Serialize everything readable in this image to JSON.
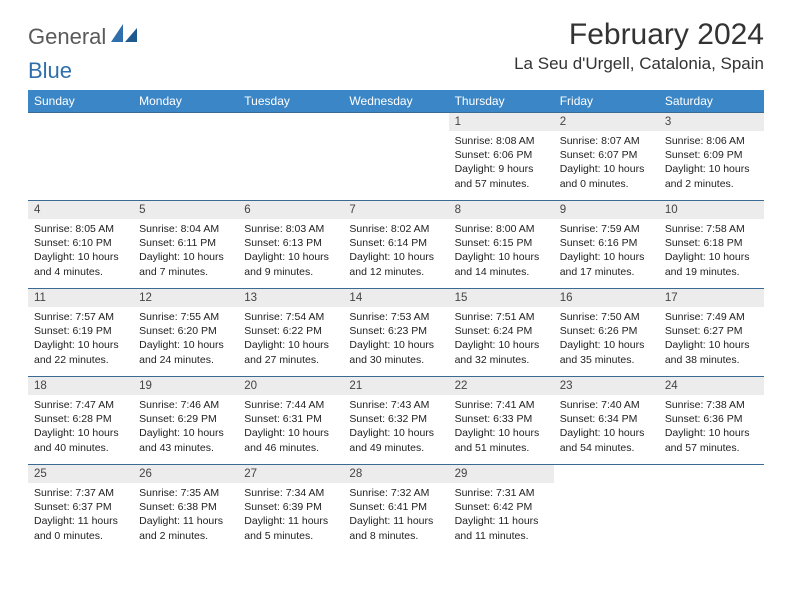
{
  "logo": {
    "text1": "General",
    "text2": "Blue"
  },
  "title": "February 2024",
  "location": "La Seu d'Urgell, Catalonia, Spain",
  "colors": {
    "header_bg": "#3b86c6",
    "header_text": "#ffffff",
    "border": "#3b6a94",
    "daynum_bg": "#ececec",
    "logo_gray": "#5a5a5a",
    "logo_blue": "#2f6fab"
  },
  "day_headers": [
    "Sunday",
    "Monday",
    "Tuesday",
    "Wednesday",
    "Thursday",
    "Friday",
    "Saturday"
  ],
  "weeks": [
    [
      null,
      null,
      null,
      null,
      {
        "n": "1",
        "sr": "8:08 AM",
        "ss": "6:06 PM",
        "dl": "9 hours and 57 minutes."
      },
      {
        "n": "2",
        "sr": "8:07 AM",
        "ss": "6:07 PM",
        "dl": "10 hours and 0 minutes."
      },
      {
        "n": "3",
        "sr": "8:06 AM",
        "ss": "6:09 PM",
        "dl": "10 hours and 2 minutes."
      }
    ],
    [
      {
        "n": "4",
        "sr": "8:05 AM",
        "ss": "6:10 PM",
        "dl": "10 hours and 4 minutes."
      },
      {
        "n": "5",
        "sr": "8:04 AM",
        "ss": "6:11 PM",
        "dl": "10 hours and 7 minutes."
      },
      {
        "n": "6",
        "sr": "8:03 AM",
        "ss": "6:13 PM",
        "dl": "10 hours and 9 minutes."
      },
      {
        "n": "7",
        "sr": "8:02 AM",
        "ss": "6:14 PM",
        "dl": "10 hours and 12 minutes."
      },
      {
        "n": "8",
        "sr": "8:00 AM",
        "ss": "6:15 PM",
        "dl": "10 hours and 14 minutes."
      },
      {
        "n": "9",
        "sr": "7:59 AM",
        "ss": "6:16 PM",
        "dl": "10 hours and 17 minutes."
      },
      {
        "n": "10",
        "sr": "7:58 AM",
        "ss": "6:18 PM",
        "dl": "10 hours and 19 minutes."
      }
    ],
    [
      {
        "n": "11",
        "sr": "7:57 AM",
        "ss": "6:19 PM",
        "dl": "10 hours and 22 minutes."
      },
      {
        "n": "12",
        "sr": "7:55 AM",
        "ss": "6:20 PM",
        "dl": "10 hours and 24 minutes."
      },
      {
        "n": "13",
        "sr": "7:54 AM",
        "ss": "6:22 PM",
        "dl": "10 hours and 27 minutes."
      },
      {
        "n": "14",
        "sr": "7:53 AM",
        "ss": "6:23 PM",
        "dl": "10 hours and 30 minutes."
      },
      {
        "n": "15",
        "sr": "7:51 AM",
        "ss": "6:24 PM",
        "dl": "10 hours and 32 minutes."
      },
      {
        "n": "16",
        "sr": "7:50 AM",
        "ss": "6:26 PM",
        "dl": "10 hours and 35 minutes."
      },
      {
        "n": "17",
        "sr": "7:49 AM",
        "ss": "6:27 PM",
        "dl": "10 hours and 38 minutes."
      }
    ],
    [
      {
        "n": "18",
        "sr": "7:47 AM",
        "ss": "6:28 PM",
        "dl": "10 hours and 40 minutes."
      },
      {
        "n": "19",
        "sr": "7:46 AM",
        "ss": "6:29 PM",
        "dl": "10 hours and 43 minutes."
      },
      {
        "n": "20",
        "sr": "7:44 AM",
        "ss": "6:31 PM",
        "dl": "10 hours and 46 minutes."
      },
      {
        "n": "21",
        "sr": "7:43 AM",
        "ss": "6:32 PM",
        "dl": "10 hours and 49 minutes."
      },
      {
        "n": "22",
        "sr": "7:41 AM",
        "ss": "6:33 PM",
        "dl": "10 hours and 51 minutes."
      },
      {
        "n": "23",
        "sr": "7:40 AM",
        "ss": "6:34 PM",
        "dl": "10 hours and 54 minutes."
      },
      {
        "n": "24",
        "sr": "7:38 AM",
        "ss": "6:36 PM",
        "dl": "10 hours and 57 minutes."
      }
    ],
    [
      {
        "n": "25",
        "sr": "7:37 AM",
        "ss": "6:37 PM",
        "dl": "11 hours and 0 minutes."
      },
      {
        "n": "26",
        "sr": "7:35 AM",
        "ss": "6:38 PM",
        "dl": "11 hours and 2 minutes."
      },
      {
        "n": "27",
        "sr": "7:34 AM",
        "ss": "6:39 PM",
        "dl": "11 hours and 5 minutes."
      },
      {
        "n": "28",
        "sr": "7:32 AM",
        "ss": "6:41 PM",
        "dl": "11 hours and 8 minutes."
      },
      {
        "n": "29",
        "sr": "7:31 AM",
        "ss": "6:42 PM",
        "dl": "11 hours and 11 minutes."
      },
      null,
      null
    ]
  ],
  "labels": {
    "sunrise": "Sunrise: ",
    "sunset": "Sunset: ",
    "daylight": "Daylight: "
  }
}
